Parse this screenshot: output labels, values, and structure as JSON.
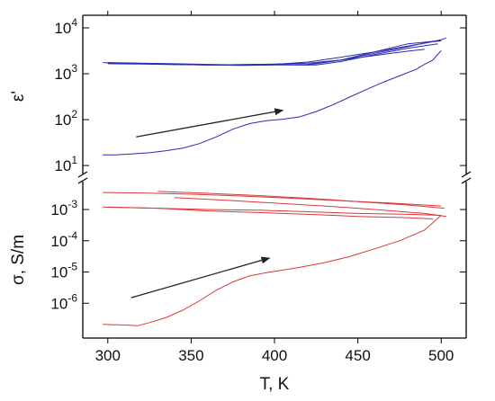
{
  "chart_data": {
    "type": "line",
    "xlabel": "T, K",
    "xlim": [
      285,
      515
    ],
    "xticks": [
      300,
      350,
      400,
      450,
      500
    ],
    "colors": {
      "epsilon": "#2a2ab4",
      "sigma": "#d93838",
      "arrow": "#222222"
    },
    "panels": [
      {
        "id": "epsilon",
        "ylabel": "ε'",
        "scale": "log",
        "ylim": [
          7,
          15000
        ],
        "ticks": [
          {
            "value": 10,
            "base": "10",
            "exp": "1"
          },
          {
            "value": 100,
            "base": "10",
            "exp": "2"
          },
          {
            "value": 1000,
            "base": "10",
            "exp": "3"
          },
          {
            "value": 10000,
            "base": "10",
            "exp": "4"
          }
        ],
        "series": [
          {
            "x": [
              297,
              310,
              330,
              350,
              370,
              390,
              410,
              420,
              440,
              460,
              480,
              490,
              500,
              503
            ],
            "y": [
              1750,
              1700,
              1650,
              1600,
              1550,
              1560,
              1580,
              1600,
              2000,
              2800,
              3900,
              4700,
              5500,
              6000
            ]
          },
          {
            "x": [
              500,
              480,
              460,
              440,
              420,
              400,
              380,
              360,
              340,
              320,
              300
            ],
            "y": [
              5300,
              4500,
              3000,
              2000,
              1550,
              1580,
              1560,
              1600,
              1650,
              1700,
              1750
            ]
          },
          {
            "x": [
              300,
              320,
              340,
              360,
              380,
              400,
              420,
              440,
              460,
              480,
              495,
              500
            ],
            "y": [
              1700,
              1680,
              1600,
              1550,
              1580,
              1600,
              1800,
              2300,
              3000,
              4000,
              5000,
              5200
            ]
          },
          {
            "x": [
              498,
              480,
              460,
              440,
              425,
              400,
              380,
              360,
              340,
              320,
              300
            ],
            "y": [
              4500,
              3600,
              2600,
              1850,
              1550,
              1550,
              1520,
              1550,
              1600,
              1650,
              1700
            ]
          },
          {
            "x": [
              300,
              320,
              340,
              360,
              380,
              400,
              420,
              440,
              460,
              480,
              490
            ],
            "y": [
              1650,
              1620,
              1580,
              1560,
              1580,
              1620,
              1700,
              2000,
              2500,
              3100,
              3400
            ]
          },
          {
            "x": [
              297,
              305,
              315,
              325,
              335,
              345,
              355,
              365,
              375,
              385,
              395,
              405,
              415,
              425,
              435,
              445,
              455,
              465,
              475,
              485,
              490,
              495,
              500
            ],
            "y": [
              17,
              17,
              18,
              19,
              21,
              24,
              30,
              42,
              62,
              82,
              95,
              102,
              115,
              150,
              210,
              310,
              450,
              650,
              900,
              1250,
              1600,
              2000,
              3200
            ]
          }
        ],
        "arrow": {
          "from": [
            317,
            42
          ],
          "to": [
            405,
            160
          ]
        }
      },
      {
        "id": "sigma",
        "ylabel": "σ, S/m",
        "scale": "log",
        "ylim": [
          1e-07,
          0.006
        ],
        "ticks": [
          {
            "value": 1e-06,
            "base": "10",
            "exp": "-6"
          },
          {
            "value": 1e-05,
            "base": "10",
            "exp": "-5"
          },
          {
            "value": 0.0001,
            "base": "10",
            "exp": "-4"
          },
          {
            "value": 0.001,
            "base": "10",
            "exp": "-3"
          }
        ],
        "series": [
          {
            "x": [
              297,
              320,
              350,
              380,
              410,
              440,
              470,
              500
            ],
            "y": [
              0.0035,
              0.0034,
              0.0031,
              0.0027,
              0.0023,
              0.0019,
              0.0016,
              0.0013
            ]
          },
          {
            "x": [
              330,
              360,
              390,
              420,
              450,
              480,
              502
            ],
            "y": [
              0.0038,
              0.0033,
              0.0028,
              0.0023,
              0.0018,
              0.0014,
              0.0011
            ]
          },
          {
            "x": [
              297,
              330,
              360,
              390,
              420,
              450,
              480,
              500
            ],
            "y": [
              0.0012,
              0.0011,
              0.001,
              0.00095,
              0.00085,
              0.00075,
              0.0007,
              0.00065
            ]
          },
          {
            "x": [
              300,
              330,
              360,
              390,
              420,
              450,
              480,
              495
            ],
            "y": [
              0.0012,
              0.0011,
              0.0009,
              0.0008,
              0.0007,
              0.0006,
              0.00055,
              0.0005
            ]
          },
          {
            "x": [
              340,
              370,
              400,
              430,
              460,
              490,
              503
            ],
            "y": [
              0.0024,
              0.002,
              0.0016,
              0.0013,
              0.001,
              0.00075,
              0.0006
            ]
          },
          {
            "x": [
              297,
              310,
              318,
              325,
              335,
              345,
              355,
              365,
              375,
              385,
              395,
              405,
              415,
              430,
              445,
              460,
              475,
              490,
              500
            ],
            "y": [
              2.1e-07,
              2e-07,
              1.9e-07,
              2.4e-07,
              3.5e-07,
              6e-07,
              1.2e-06,
              2.6e-06,
              4.8e-06,
              7.5e-06,
              9.5e-06,
              1.15e-05,
              1.4e-05,
              2e-05,
              3.1e-05,
              5.5e-05,
              0.0001,
              0.00022,
              0.00065
            ]
          }
        ],
        "arrow": {
          "from": [
            314,
            1.5e-06
          ],
          "to": [
            397,
            2.8e-05
          ]
        }
      }
    ]
  }
}
